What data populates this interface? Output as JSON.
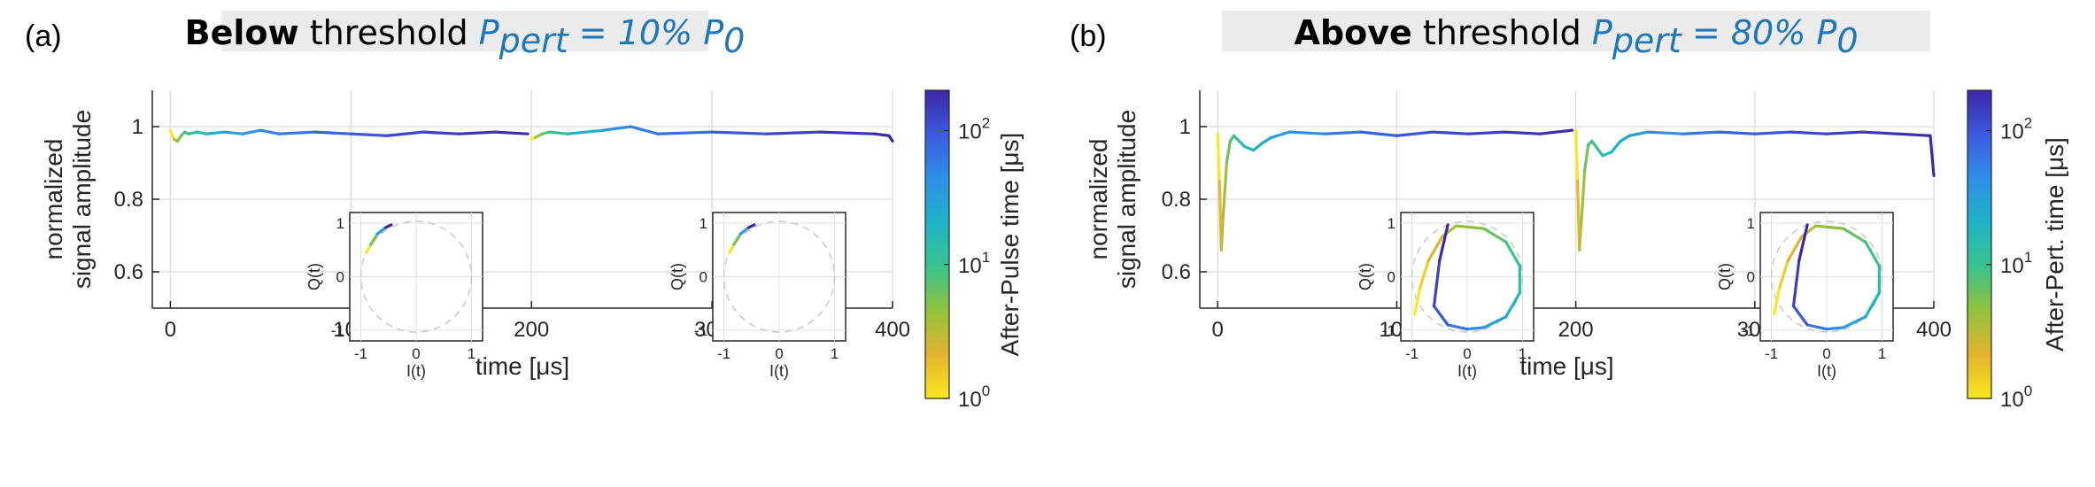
{
  "chart_data": [
    {
      "type": "line",
      "panel_label": "(a)",
      "title": {
        "bold": "Below",
        "rest": " threshold ",
        "math": {
          "P": "P",
          "sub_pert": "pert",
          "eq": " = 10% ",
          "P0": "P",
          "sub0": "0"
        }
      },
      "xlabel": "time [μs]",
      "ylabel_line1": "normalized",
      "ylabel_line2": "signal amplitude",
      "xlim": [
        -10,
        400
      ],
      "ylim": [
        0.5,
        1.1
      ],
      "xticks": [
        "0",
        "100",
        "200",
        "300",
        "400"
      ],
      "yticks": [
        "0.6",
        "0.8",
        "1"
      ],
      "grid": true,
      "colorbar": {
        "label": "After-Pulse time [μs]",
        "scale": "log",
        "min": 1,
        "max": 200,
        "ticks": [
          "10",
          "10",
          "10"
        ],
        "tick_exp": [
          "0",
          "1",
          "2"
        ]
      },
      "segments": [
        {
          "t": [
            0,
            2,
            4,
            6,
            8,
            10,
            15,
            20,
            30,
            40,
            50,
            60,
            80,
            100,
            120,
            140,
            160,
            180,
            198
          ],
          "y": [
            0.99,
            0.965,
            0.96,
            0.975,
            0.985,
            0.98,
            0.985,
            0.98,
            0.985,
            0.98,
            0.99,
            0.98,
            0.985,
            0.98,
            0.975,
            0.985,
            0.98,
            0.985,
            0.98
          ]
        },
        {
          "t": [
            200,
            202,
            204,
            206,
            210,
            220,
            240,
            255,
            270,
            300,
            330,
            360,
            390,
            398,
            400
          ],
          "y": [
            0.965,
            0.97,
            0.975,
            0.98,
            0.985,
            0.98,
            0.99,
            1.0,
            0.98,
            0.985,
            0.98,
            0.985,
            0.98,
            0.975,
            0.96
          ]
        }
      ],
      "insets": [
        {
          "xlabel": "I(t)",
          "ylabel": "Q(t)",
          "xticks": [
            "-1",
            "0",
            "1"
          ],
          "yticks": [
            "-1",
            "0",
            "1"
          ],
          "I": [
            -0.9,
            -0.82,
            -0.7,
            -0.55,
            -0.45
          ],
          "Q": [
            0.45,
            0.6,
            0.8,
            0.92,
            0.97
          ]
        },
        {
          "xlabel": "I(t)",
          "ylabel": "Q(t)",
          "xticks": [
            "-1",
            "0",
            "1"
          ],
          "yticks": [
            "-1",
            "0",
            "1"
          ],
          "I": [
            -0.9,
            -0.82,
            -0.7,
            -0.55,
            -0.45
          ],
          "Q": [
            0.45,
            0.6,
            0.8,
            0.92,
            0.97
          ]
        }
      ]
    },
    {
      "type": "line",
      "panel_label": "(b)",
      "title": {
        "bold": "Above",
        "rest": " threshold ",
        "math": {
          "P": "P",
          "sub_pert": "pert",
          "eq": " = 80% ",
          "P0": "P",
          "sub0": "0"
        }
      },
      "xlabel": "time [μs]",
      "ylabel_line1": "normalized",
      "ylabel_line2": "signal amplitude",
      "xlim": [
        -10,
        400
      ],
      "ylim": [
        0.5,
        1.1
      ],
      "xticks": [
        "0",
        "100",
        "200",
        "300",
        "400"
      ],
      "yticks": [
        "0.6",
        "0.8",
        "1"
      ],
      "grid": true,
      "colorbar": {
        "label": "After-Pert. time [μs]",
        "scale": "log",
        "min": 1,
        "max": 200,
        "ticks": [
          "10",
          "10",
          "10"
        ],
        "tick_exp": [
          "0",
          "1",
          "2"
        ]
      },
      "segments": [
        {
          "t": [
            0,
            1,
            2,
            3,
            5,
            7,
            9,
            12,
            15,
            20,
            25,
            30,
            40,
            60,
            80,
            100,
            120,
            140,
            160,
            180,
            198
          ],
          "y": [
            0.98,
            0.85,
            0.66,
            0.75,
            0.9,
            0.96,
            0.975,
            0.96,
            0.945,
            0.935,
            0.955,
            0.97,
            0.985,
            0.98,
            0.985,
            0.975,
            0.985,
            0.98,
            0.985,
            0.98,
            0.99
          ]
        },
        {
          "t": [
            200,
            201,
            202,
            203,
            205,
            207,
            209,
            212,
            215,
            220,
            225,
            230,
            240,
            260,
            280,
            300,
            320,
            340,
            360,
            380,
            398,
            400
          ],
          "y": [
            0.99,
            0.85,
            0.66,
            0.73,
            0.88,
            0.95,
            0.96,
            0.94,
            0.92,
            0.93,
            0.96,
            0.975,
            0.985,
            0.98,
            0.985,
            0.98,
            0.985,
            0.98,
            0.985,
            0.98,
            0.975,
            0.865
          ]
        }
      ],
      "insets": [
        {
          "xlabel": "I(t)",
          "ylabel": "Q(t)",
          "xticks": [
            "-1",
            "0",
            "1"
          ],
          "yticks": [
            "-1",
            "0",
            "1"
          ],
          "I": [
            -0.95,
            -0.85,
            -0.7,
            -0.45,
            -0.2,
            0.3,
            0.7,
            0.95,
            0.95,
            0.7,
            0.3,
            0.0,
            -0.35,
            -0.6,
            -0.5,
            -0.35
          ],
          "Q": [
            -0.7,
            -0.2,
            0.3,
            0.75,
            0.95,
            0.9,
            0.65,
            0.2,
            -0.3,
            -0.75,
            -0.95,
            -0.98,
            -0.9,
            -0.55,
            0.3,
            0.97
          ]
        },
        {
          "xlabel": "I(t)",
          "ylabel": "Q(t)",
          "xticks": [
            "-1",
            "0",
            "1"
          ],
          "yticks": [
            "-1",
            "0",
            "1"
          ],
          "I": [
            -0.95,
            -0.85,
            -0.7,
            -0.45,
            -0.2,
            0.3,
            0.7,
            0.95,
            0.95,
            0.7,
            0.3,
            0.0,
            -0.35,
            -0.6,
            -0.5,
            -0.35
          ],
          "Q": [
            -0.7,
            -0.2,
            0.3,
            0.75,
            0.95,
            0.9,
            0.65,
            0.2,
            -0.3,
            -0.75,
            -0.95,
            -0.98,
            -0.9,
            -0.55,
            0.3,
            0.97
          ]
        }
      ]
    }
  ],
  "colors": {
    "title_box": "#ebebeb",
    "math_text": "#1f77b4",
    "grid": "#e0e0e0",
    "axis": "#262626",
    "dashed_circle": "#c8c8c8",
    "colormap": [
      "#f9e721",
      "#e3b32f",
      "#93c23c",
      "#39c38e",
      "#1eb4c6",
      "#2e8fe8",
      "#3b5ae0",
      "#3e26a8"
    ]
  }
}
